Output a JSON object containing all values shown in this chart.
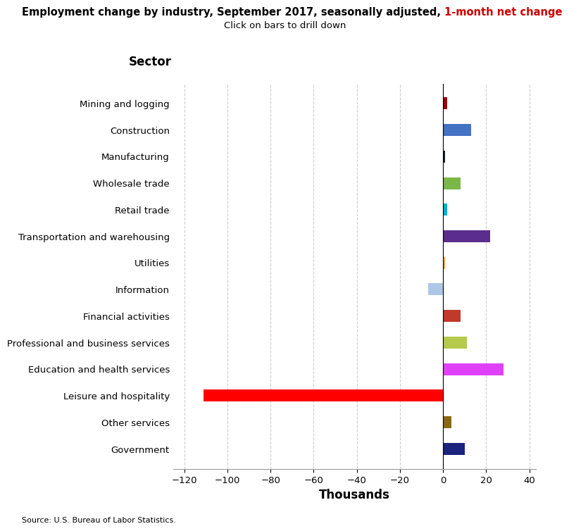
{
  "title_black": "Employment change by industry, September 2017, seasonally adjusted, ",
  "title_red": "1-month net change",
  "subtitle": "Click on bars to drill down",
  "ylabel_sector": "Sector",
  "xlabel": "Thousands",
  "source": "Source: U.S. Bureau of Labor Statistics.",
  "categories": [
    "Mining and logging",
    "Construction",
    "Manufacturing",
    "Wholesale trade",
    "Retail trade",
    "Transportation and warehousing",
    "Utilities",
    "Information",
    "Financial activities",
    "Professional and business services",
    "Education and health services",
    "Leisure and hospitality",
    "Other services",
    "Government"
  ],
  "values": [
    2,
    13,
    1,
    8,
    2,
    22,
    1,
    -7,
    8,
    11,
    28,
    -111,
    4,
    10
  ],
  "colors": [
    "#990000",
    "#4472C4",
    "#1a1a2e",
    "#7ab648",
    "#00b0c8",
    "#5b2d8e",
    "#f4a442",
    "#aec6e8",
    "#c0392b",
    "#b5c94c",
    "#e040fb",
    "#ff0000",
    "#8B6914",
    "#1a237e"
  ],
  "xlim": [
    -125,
    43
  ],
  "xticks": [
    -120,
    -100,
    -80,
    -60,
    -40,
    -20,
    0,
    20,
    40
  ],
  "bar_height": 0.45,
  "title_fontsize": 10.5,
  "subtitle_fontsize": 9.5,
  "tick_fontsize": 9.5,
  "xlabel_fontsize": 12,
  "sector_fontsize": 12,
  "source_fontsize": 8,
  "background_color": "#ffffff"
}
